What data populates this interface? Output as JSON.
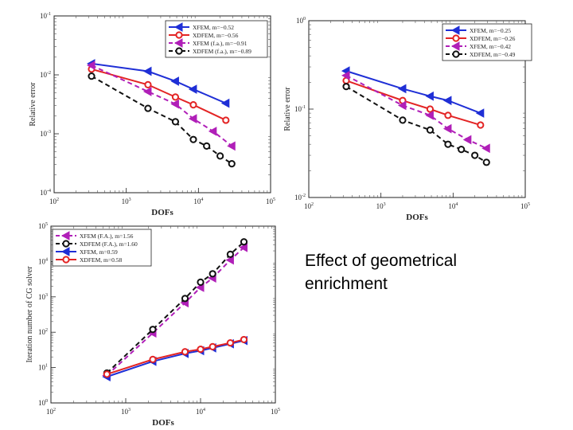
{
  "caption": {
    "line1": "Effect of geometrical",
    "line2": "enrichment"
  },
  "chart_data": [
    {
      "id": "err1",
      "type": "line",
      "scale": "loglog",
      "xlabel": "DOFs",
      "ylabel": "Relative error",
      "xlim": [
        100,
        100000
      ],
      "ylim": [
        0.0001,
        0.1
      ],
      "xticks": [
        {
          "v": 100,
          "e": "2"
        },
        {
          "v": 1000,
          "e": "3"
        },
        {
          "v": 10000,
          "e": "4"
        },
        {
          "v": 100000,
          "e": "5"
        }
      ],
      "yticks": [
        {
          "v": 0.0001,
          "e": "-4"
        },
        {
          "v": 0.001,
          "e": "-3"
        },
        {
          "v": 0.01,
          "e": "-2"
        },
        {
          "v": 0.1,
          "e": "-1"
        }
      ],
      "legend_position": "top-right",
      "series": [
        {
          "name": "XFEM, m=−0.52",
          "color": "#1f2fd6",
          "dashed": false,
          "marker": "triangle",
          "x": [
            330,
            2000,
            4800,
            8500,
            24000
          ],
          "y": [
            0.0155,
            0.0115,
            0.0078,
            0.0057,
            0.0033
          ]
        },
        {
          "name": "XDFEM, m=−0.56",
          "color": "#e32424",
          "dashed": false,
          "marker": "circle",
          "x": [
            330,
            2000,
            4800,
            8500,
            24000
          ],
          "y": [
            0.0125,
            0.0068,
            0.0042,
            0.0031,
            0.0017
          ]
        },
        {
          "name": "XFEM (f.a.), m=−0.91",
          "color": "#b01fb8",
          "dashed": true,
          "marker": "triangle",
          "x": [
            330,
            2000,
            4800,
            8500,
            16000,
            29000
          ],
          "y": [
            0.0145,
            0.0052,
            0.0032,
            0.0018,
            0.0011,
            0.00062
          ]
        },
        {
          "name": "XDFEM (f.a.), m=−0.89",
          "color": "#111111",
          "dashed": true,
          "marker": "circle",
          "x": [
            330,
            2000,
            4800,
            8500,
            13000,
            20000,
            29000
          ],
          "y": [
            0.0095,
            0.0027,
            0.0016,
            0.0008,
            0.00062,
            0.00042,
            0.00031
          ]
        }
      ]
    },
    {
      "id": "err2",
      "type": "line",
      "scale": "loglog",
      "xlabel": "DOFs",
      "ylabel": "Relative error",
      "xlim": [
        100,
        100000
      ],
      "ylim": [
        0.01,
        1
      ],
      "xticks": [
        {
          "v": 100,
          "e": "2"
        },
        {
          "v": 1000,
          "e": "3"
        },
        {
          "v": 10000,
          "e": "4"
        },
        {
          "v": 100000,
          "e": "5"
        }
      ],
      "yticks": [
        {
          "v": 0.01,
          "e": "-2"
        },
        {
          "v": 0.1,
          "e": "-1"
        },
        {
          "v": 1,
          "e": "0"
        }
      ],
      "legend_position": "top-right",
      "series": [
        {
          "name": "XFEM, m=−0.25",
          "color": "#1f2fd6",
          "dashed": false,
          "marker": "triangle",
          "x": [
            330,
            2000,
            4800,
            8500,
            24000
          ],
          "y": [
            0.27,
            0.17,
            0.14,
            0.125,
            0.09
          ]
        },
        {
          "name": "XDFEM, m=−0.26",
          "color": "#e32424",
          "dashed": false,
          "marker": "circle",
          "x": [
            330,
            2000,
            4800,
            8500,
            24000
          ],
          "y": [
            0.21,
            0.125,
            0.1,
            0.085,
            0.066
          ]
        },
        {
          "name": "XFEM, m=−0.42",
          "color": "#b01fb8",
          "dashed": true,
          "marker": "triangle",
          "x": [
            330,
            2000,
            4800,
            8500,
            16000,
            29000
          ],
          "y": [
            0.24,
            0.11,
            0.085,
            0.06,
            0.045,
            0.036
          ]
        },
        {
          "name": "XDFEM, m=−0.49",
          "color": "#111111",
          "dashed": true,
          "marker": "circle",
          "x": [
            330,
            2000,
            4800,
            8500,
            13000,
            20000,
            29000
          ],
          "y": [
            0.18,
            0.075,
            0.058,
            0.04,
            0.035,
            0.03,
            0.025
          ]
        }
      ]
    },
    {
      "id": "iter",
      "type": "line",
      "scale": "loglog",
      "xlabel": "DOFs",
      "ylabel": "Iteration number of CG solver",
      "xlim": [
        100,
        100000
      ],
      "ylim": [
        1,
        100000
      ],
      "xticks": [
        {
          "v": 100,
          "e": "2"
        },
        {
          "v": 1000,
          "e": "3"
        },
        {
          "v": 10000,
          "e": "4"
        },
        {
          "v": 100000,
          "e": "5"
        }
      ],
      "yticks": [
        {
          "v": 1,
          "e": "0"
        },
        {
          "v": 10,
          "e": "1"
        },
        {
          "v": 100,
          "e": "2"
        },
        {
          "v": 1000,
          "e": "3"
        },
        {
          "v": 10000,
          "e": "4"
        },
        {
          "v": 100000,
          "e": "5"
        }
      ],
      "legend_position": "top-left",
      "series": [
        {
          "name": "XFEM (F.A.), m=1.56",
          "color": "#b01fb8",
          "dashed": true,
          "marker": "triangle",
          "x": [
            560,
            2300,
            6200,
            10000,
            14500,
            25000,
            38000
          ],
          "y": [
            6,
            95,
            680,
            1850,
            3400,
            11000,
            25000
          ]
        },
        {
          "name": "XDFEM (F.A.), m=1.60",
          "color": "#111111",
          "dashed": true,
          "marker": "circle",
          "x": [
            560,
            2300,
            6200,
            10000,
            14500,
            25000,
            38000
          ],
          "y": [
            7,
            120,
            900,
            2600,
            4500,
            16000,
            36000
          ]
        },
        {
          "name": "XFEM, m=0.59",
          "color": "#1f2fd6",
          "dashed": false,
          "marker": "triangle",
          "x": [
            560,
            2300,
            6200,
            10000,
            14500,
            25000,
            38000
          ],
          "y": [
            5.5,
            15,
            25,
            30,
            36,
            47,
            58
          ]
        },
        {
          "name": "XDFEM, m=0.58",
          "color": "#e32424",
          "dashed": false,
          "marker": "circle",
          "x": [
            560,
            2300,
            6200,
            10000,
            14500,
            25000,
            38000
          ],
          "y": [
            6.5,
            17,
            28,
            33,
            39,
            50,
            62
          ]
        }
      ]
    }
  ]
}
